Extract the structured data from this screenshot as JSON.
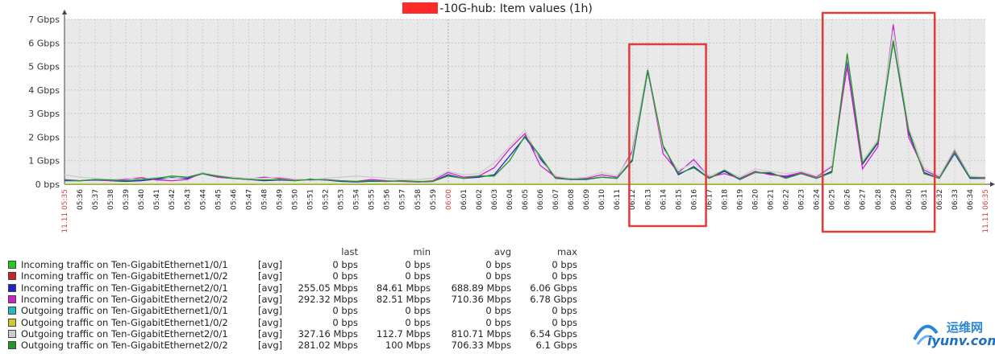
{
  "chart_data": {
    "type": "line",
    "title": "-10G-hub: Item values (1h)",
    "y_ticks": [
      "0 bps",
      "1 Gbps",
      "2 Gbps",
      "3 Gbps",
      "4 Gbps",
      "5 Gbps",
      "6 Gbps",
      "7 Gbps"
    ],
    "ylim": [
      0,
      7
    ],
    "y_unit": "Gbps",
    "x_start_label": "11.11 05:35",
    "x_end_label": "11.11 06:35",
    "x_ticks": [
      "05:36",
      "05:37",
      "05:38",
      "05:39",
      "05:40",
      "05:41",
      "05:42",
      "05:43",
      "05:44",
      "05:45",
      "05:46",
      "05:47",
      "05:48",
      "05:49",
      "05:50",
      "05:51",
      "05:52",
      "05:53",
      "05:54",
      "05:55",
      "05:56",
      "05:57",
      "05:58",
      "05:59",
      "06:00",
      "06:01",
      "06:02",
      "06:03",
      "06:04",
      "06:05",
      "06:06",
      "06:07",
      "06:08",
      "06:09",
      "06:10",
      "06:11",
      "06:12",
      "06:13",
      "06:14",
      "06:15",
      "06:16",
      "06:17",
      "06:18",
      "06:19",
      "06:20",
      "06:21",
      "06:22",
      "06:23",
      "06:24",
      "06:25",
      "06:26",
      "06:27",
      "06:28",
      "06:29",
      "06:30",
      "06:31",
      "06:32",
      "06:33",
      "06:34"
    ],
    "x_highlight_tick": "06:00",
    "grid": true,
    "legend_columns": [
      "last",
      "min",
      "avg",
      "max"
    ],
    "series": [
      {
        "name": "Incoming traffic on Ten-GigabitEthernet1/0/1",
        "color": "#22cc22",
        "fn": "[avg]",
        "last": "0 bps",
        "min": "0 bps",
        "avg": "0 bps",
        "max": "0 bps",
        "values": [
          0,
          0,
          0,
          0,
          0,
          0,
          0,
          0,
          0,
          0,
          0,
          0,
          0,
          0,
          0,
          0,
          0,
          0,
          0,
          0,
          0,
          0,
          0,
          0,
          0,
          0,
          0,
          0,
          0,
          0,
          0,
          0,
          0,
          0,
          0,
          0,
          0,
          0,
          0,
          0,
          0,
          0,
          0,
          0,
          0,
          0,
          0,
          0,
          0,
          0,
          0,
          0,
          0,
          0,
          0,
          0,
          0,
          0,
          0,
          0,
          0
        ]
      },
      {
        "name": "Incoming traffic on Ten-GigabitEthernet1/0/2",
        "color": "#cc2222",
        "fn": "[avg]",
        "last": "0 bps",
        "min": "0 bps",
        "avg": "0 bps",
        "max": "0 bps",
        "values": [
          0,
          0,
          0,
          0,
          0,
          0,
          0,
          0,
          0,
          0,
          0,
          0,
          0,
          0,
          0,
          0,
          0,
          0,
          0,
          0,
          0,
          0,
          0,
          0,
          0,
          0,
          0,
          0,
          0,
          0,
          0,
          0,
          0,
          0,
          0,
          0,
          0,
          0,
          0,
          0,
          0,
          0,
          0,
          0,
          0,
          0,
          0,
          0,
          0,
          0,
          0,
          0,
          0,
          0,
          0,
          0,
          0,
          0,
          0,
          0,
          0
        ]
      },
      {
        "name": "Incoming traffic on Ten-GigabitEthernet2/0/1",
        "color": "#2222cc",
        "fn": "[avg]",
        "last": "255.05 Mbps",
        "min": "84.61 Mbps",
        "avg": "688.89 Mbps",
        "max": "6.06 Gbps",
        "values": [
          0.15,
          0.15,
          0.18,
          0.15,
          0.12,
          0.15,
          0.22,
          0.28,
          0.25,
          0.45,
          0.3,
          0.25,
          0.2,
          0.15,
          0.18,
          0.15,
          0.22,
          0.18,
          0.12,
          0.1,
          0.13,
          0.12,
          0.15,
          0.1,
          0.12,
          0.4,
          0.25,
          0.3,
          0.4,
          1.2,
          2.0,
          1.1,
          0.25,
          0.2,
          0.2,
          0.3,
          0.25,
          1.0,
          4.8,
          1.6,
          0.4,
          0.75,
          0.25,
          0.55,
          0.2,
          0.5,
          0.45,
          0.3,
          0.45,
          0.25,
          0.55,
          5.2,
          0.85,
          1.75,
          6.06,
          2.2,
          0.5,
          0.25,
          1.3,
          0.25,
          0.25
        ]
      },
      {
        "name": "Incoming traffic on Ten-GigabitEthernet2/0/2",
        "color": "#cc22cc",
        "fn": "[avg]",
        "last": "292.32 Mbps",
        "min": "82.51 Mbps",
        "avg": "710.36 Mbps",
        "max": "6.78 Gbps",
        "values": [
          0.2,
          0.15,
          0.2,
          0.15,
          0.2,
          0.28,
          0.18,
          0.15,
          0.2,
          0.5,
          0.3,
          0.25,
          0.22,
          0.3,
          0.25,
          0.2,
          0.18,
          0.2,
          0.15,
          0.12,
          0.2,
          0.15,
          0.12,
          0.1,
          0.15,
          0.5,
          0.3,
          0.35,
          0.7,
          1.5,
          2.15,
          0.8,
          0.3,
          0.2,
          0.25,
          0.4,
          0.3,
          1.4,
          4.9,
          1.3,
          0.5,
          1.05,
          0.3,
          0.45,
          0.25,
          0.55,
          0.4,
          0.35,
          0.5,
          0.3,
          0.75,
          5.0,
          0.65,
          1.6,
          6.78,
          2.0,
          0.6,
          0.3,
          1.45,
          0.3,
          0.25
        ]
      },
      {
        "name": "Outgoing traffic on Ten-GigabitEthernet1/0/1",
        "color": "#22bbbb",
        "fn": "[avg]",
        "last": "0 bps",
        "min": "0 bps",
        "avg": "0 bps",
        "max": "0 bps",
        "values": [
          0.01,
          0.01,
          0.01,
          0.01,
          0.01,
          0.01,
          0.01,
          0.01,
          0.01,
          0.01,
          0.01,
          0.01,
          0.01,
          0.01,
          0.01,
          0.01,
          0.01,
          0.01,
          0.01,
          0.01,
          0.01,
          0.01,
          0.01,
          0.01,
          0.01,
          0.01,
          0.01,
          0.01,
          0.01,
          0.01,
          0.01,
          0.01,
          0.01,
          0.01,
          0.01,
          0.01,
          0.01,
          0.01,
          0.01,
          0.01,
          0.01,
          0.01,
          0.01,
          0.01,
          0.01,
          0.01,
          0.01,
          0.01,
          0.01,
          0.01,
          0.01,
          0.01,
          0.01,
          0.01,
          0.01,
          0.01,
          0.01,
          0.01,
          0.01,
          0.01,
          0.01
        ]
      },
      {
        "name": "Outgoing traffic on Ten-GigabitEthernet1/0/2",
        "color": "#cccc22",
        "fn": "[avg]",
        "last": "0 bps",
        "min": "0 bps",
        "avg": "0 bps",
        "max": "0 bps",
        "values": [
          0.02,
          0.02,
          0.02,
          0.02,
          0.02,
          0.02,
          0.02,
          0.02,
          0.02,
          0.02,
          0.02,
          0.02,
          0.02,
          0.02,
          0.02,
          0.02,
          0.02,
          0.02,
          0.02,
          0.02,
          0.02,
          0.02,
          0.02,
          0.02,
          0.02,
          0.02,
          0.02,
          0.02,
          0.02,
          0.02,
          0.02,
          0.02,
          0.02,
          0.02,
          0.02,
          0.02,
          0.02,
          0.02,
          0.02,
          0.02,
          0.02,
          0.02,
          0.02,
          0.02,
          0.02,
          0.02,
          0.02,
          0.02,
          0.02,
          0.02,
          0.02,
          0.02,
          0.02,
          0.02,
          0.02,
          0.02,
          0.02,
          0.02,
          0.02,
          0.02,
          0.02
        ]
      },
      {
        "name": "Outgoing traffic on Ten-GigabitEthernet2/0/1",
        "color": "#cccccc",
        "fn": "[avg]",
        "last": "327.16 Mbps",
        "min": "112.7 Mbps",
        "avg": "810.71 Mbps",
        "max": "6.54 Gbps",
        "values": [
          0.4,
          0.3,
          0.25,
          0.2,
          0.25,
          0.2,
          0.3,
          0.25,
          0.3,
          0.5,
          0.35,
          0.3,
          0.25,
          0.25,
          0.3,
          0.22,
          0.2,
          0.25,
          0.3,
          0.35,
          0.3,
          0.25,
          0.2,
          0.2,
          0.25,
          0.55,
          0.4,
          0.45,
          0.9,
          1.6,
          2.3,
          1.0,
          0.35,
          0.25,
          0.3,
          0.5,
          0.35,
          1.3,
          4.95,
          1.5,
          0.6,
          0.9,
          0.35,
          0.6,
          0.3,
          0.65,
          0.55,
          0.45,
          0.55,
          0.35,
          0.8,
          5.4,
          1.0,
          1.9,
          6.54,
          2.4,
          0.7,
          0.35,
          1.5,
          0.35,
          0.3
        ]
      },
      {
        "name": "Outgoing traffic on Ten-GigabitEthernet2/0/2",
        "color": "#229922",
        "fn": "[avg]",
        "last": "281.02 Mbps",
        "min": "100 Mbps",
        "avg": "706.33 Mbps",
        "max": "6.1 Gbps",
        "values": [
          0.18,
          0.15,
          0.2,
          0.18,
          0.15,
          0.2,
          0.25,
          0.35,
          0.3,
          0.45,
          0.35,
          0.25,
          0.2,
          0.18,
          0.2,
          0.15,
          0.2,
          0.18,
          0.15,
          0.12,
          0.15,
          0.12,
          0.15,
          0.12,
          0.12,
          0.35,
          0.25,
          0.35,
          0.35,
          1.0,
          2.05,
          1.2,
          0.25,
          0.22,
          0.22,
          0.3,
          0.25,
          1.05,
          4.85,
          1.65,
          0.45,
          0.7,
          0.25,
          0.6,
          0.22,
          0.5,
          0.5,
          0.25,
          0.45,
          0.25,
          0.5,
          5.55,
          0.9,
          1.8,
          6.1,
          2.3,
          0.45,
          0.25,
          1.35,
          0.28,
          0.28
        ]
      }
    ]
  },
  "watermark": {
    "cn": "运维网",
    "en": "iyunv.com"
  }
}
